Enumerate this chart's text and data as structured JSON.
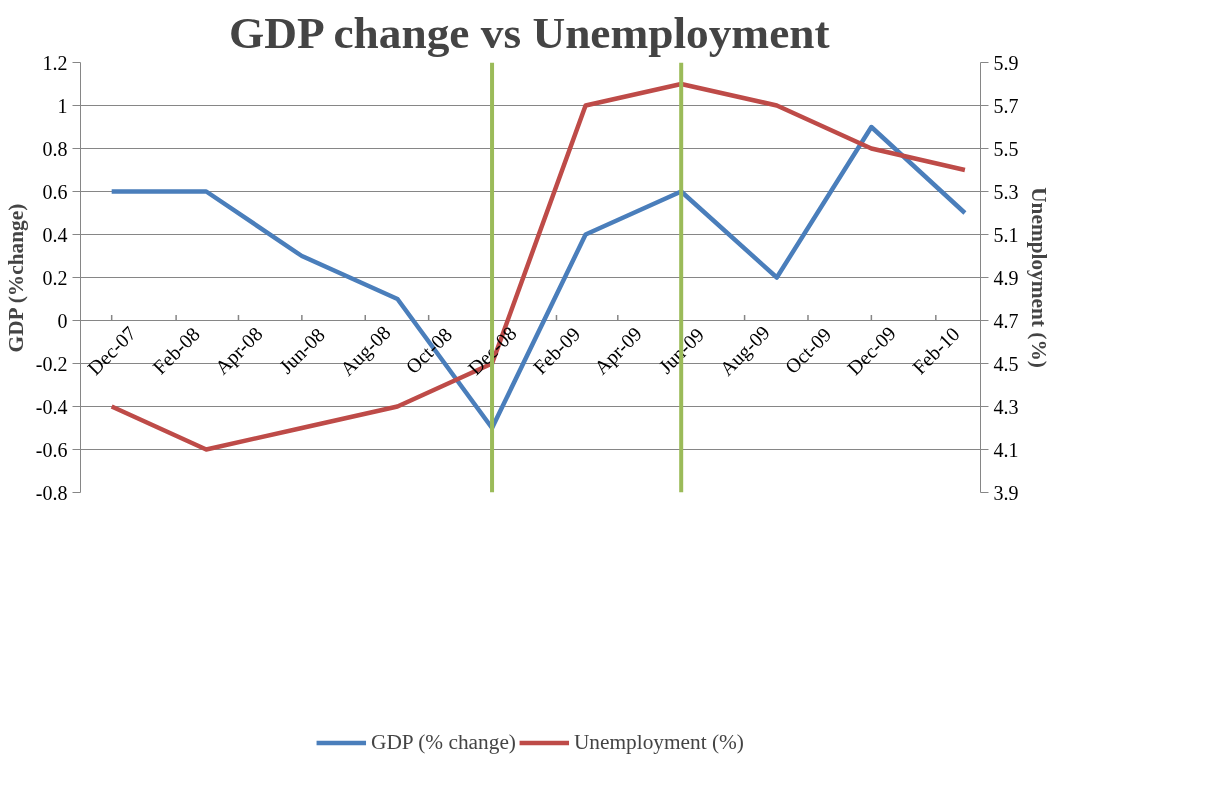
{
  "chart_data": {
    "type": "line",
    "title": "GDP change vs Unemployment",
    "ylabel": "GDP (%change)",
    "y2label": "Unemployment (%)",
    "x": [
      "2007-12",
      "2008-03",
      "2008-06",
      "2008-09",
      "2008-12",
      "2009-03",
      "2009-06",
      "2009-09",
      "2009-12",
      "2010-03"
    ],
    "series": [
      {
        "name": "GDP (% change)",
        "color": "#4a7ebb",
        "values": [
          0.6,
          0.6,
          0.3,
          0.1,
          -0.5,
          0.4,
          0.6,
          0.2,
          0.9,
          0.5
        ]
      },
      {
        "name": "Unemployment (%)",
        "color": "#be4b48",
        "axis": "y2",
        "values": [
          4.3,
          4.1,
          4.2,
          4.3,
          4.5,
          5.7,
          5.8,
          5.7,
          5.5,
          5.4
        ]
      }
    ],
    "xlim": [
      "2007-11-01",
      "2010-03-16"
    ],
    "xticks": [
      {
        "value": "2007-12",
        "label": "Dec-07"
      },
      {
        "value": "2008-02",
        "label": "Feb-08"
      },
      {
        "value": "2008-04",
        "label": "Apr-08"
      },
      {
        "value": "2008-06",
        "label": "Jun-08"
      },
      {
        "value": "2008-08",
        "label": "Aug-08"
      },
      {
        "value": "2008-10",
        "label": "Oct-08"
      },
      {
        "value": "2008-12",
        "label": "Dec-08"
      },
      {
        "value": "2009-02",
        "label": "Feb-09"
      },
      {
        "value": "2009-04",
        "label": "Apr-09"
      },
      {
        "value": "2009-06",
        "label": "Jun-09"
      },
      {
        "value": "2009-08",
        "label": "Aug-09"
      },
      {
        "value": "2009-10",
        "label": "Oct-09"
      },
      {
        "value": "2009-12",
        "label": "Dec-09"
      },
      {
        "value": "2010-02",
        "label": "Feb-10"
      }
    ],
    "ylim": [
      -0.8,
      1.2
    ],
    "yticks": [
      -0.8,
      -0.6,
      -0.4,
      -0.2,
      0,
      0.2,
      0.4,
      0.6,
      0.8,
      1,
      1.2
    ],
    "y2lim": [
      3.9,
      5.9
    ],
    "y2ticks": [
      3.9,
      4.1,
      4.3,
      4.5,
      4.7,
      4.9,
      5.1,
      5.3,
      5.5,
      5.7,
      5.9
    ],
    "ref_lines": [
      {
        "axis": "x",
        "value": "2008-12",
        "color": "#9bbb59"
      },
      {
        "axis": "x",
        "value": "2009-06",
        "color": "#9bbb59"
      }
    ],
    "grid": "y",
    "legend": "bottom",
    "marker": "none",
    "line_style": "solid"
  }
}
